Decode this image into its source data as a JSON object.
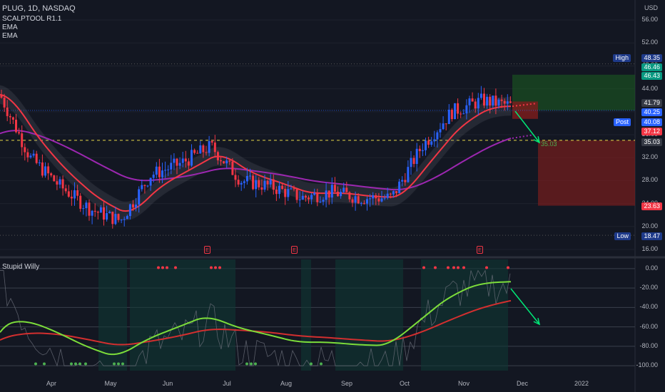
{
  "header": {
    "symbol": "PLUG, 1D, NASDAQ",
    "indicators": [
      "SCALPTOOL R1.1",
      "EMA",
      "EMA"
    ],
    "currency": "USD"
  },
  "price_axis": {
    "ticks": [
      "56.00",
      "52.00",
      "48.00",
      "44.00",
      "40.00",
      "36.00",
      "32.00",
      "28.00",
      "24.00",
      "20.00",
      "16.00"
    ],
    "tick_values": [
      56,
      52,
      48,
      44,
      40,
      36,
      32,
      28,
      24,
      20,
      16
    ]
  },
  "price_labels": {
    "high_label": "High",
    "high_value": "48.35",
    "target_1": "46.46",
    "target_2": "46.43",
    "current": "41.79",
    "post_value": "40.25",
    "post_label": "Post",
    "post_price": "40.08",
    "stop": "37.12",
    "line_level": "35.03",
    "line_label": "35.03",
    "stop_target": "23.63",
    "low_label": "Low",
    "low_value": "18.47"
  },
  "time_axis": {
    "labels": [
      "Apr",
      "May",
      "Jun",
      "Jul",
      "Aug",
      "Sep",
      "Oct",
      "Nov",
      "Dec",
      "2022"
    ]
  },
  "earnings_marker": "E",
  "oscillator": {
    "name": "Stupid Willy",
    "ticks": [
      "0.00",
      "-20.00",
      "-40.00",
      "-60.00",
      "-80.00",
      "-100.00"
    ],
    "tick_values": [
      0,
      -20,
      -40,
      -60,
      -80,
      -100
    ]
  },
  "colors": {
    "background": "#131722",
    "bull": "#2962ff",
    "bear": "#f23645",
    "ema_fast": "#f23645",
    "ema_slow": "#9c27b0",
    "profit_zone": "#1b5e20",
    "loss_zone": "#7f1d1d",
    "dashed_level": "#e8d84a",
    "osc_fast": "#7cdd3a",
    "osc_slow": "#d32f2f"
  },
  "chart_data": {
    "type": "candlestick",
    "ylim": [
      16,
      57
    ],
    "high": 48.35,
    "low": 18.47,
    "level": 35.03,
    "monthly_close_points": [
      {
        "x": "Mar",
        "y": 43
      },
      {
        "x": "Apr",
        "y": 32
      },
      {
        "x": "Apr-mid",
        "y": 27
      },
      {
        "x": "May",
        "y": 23
      },
      {
        "x": "May-mid",
        "y": 21
      },
      {
        "x": "Jun",
        "y": 29
      },
      {
        "x": "Jun-mid",
        "y": 31
      },
      {
        "x": "Jul",
        "y": 34
      },
      {
        "x": "Jul-mid",
        "y": 28
      },
      {
        "x": "Aug",
        "y": 27
      },
      {
        "x": "Aug-mid",
        "y": 25
      },
      {
        "x": "Sep",
        "y": 26
      },
      {
        "x": "Sep-mid",
        "y": 25
      },
      {
        "x": "Oct",
        "y": 25
      },
      {
        "x": "Oct-mid",
        "y": 34
      },
      {
        "x": "Nov",
        "y": 40
      },
      {
        "x": "Nov-mid",
        "y": 42
      },
      {
        "x": "Nov-end",
        "y": 41
      }
    ],
    "oscillator_ylim": [
      -105,
      5
    ]
  }
}
